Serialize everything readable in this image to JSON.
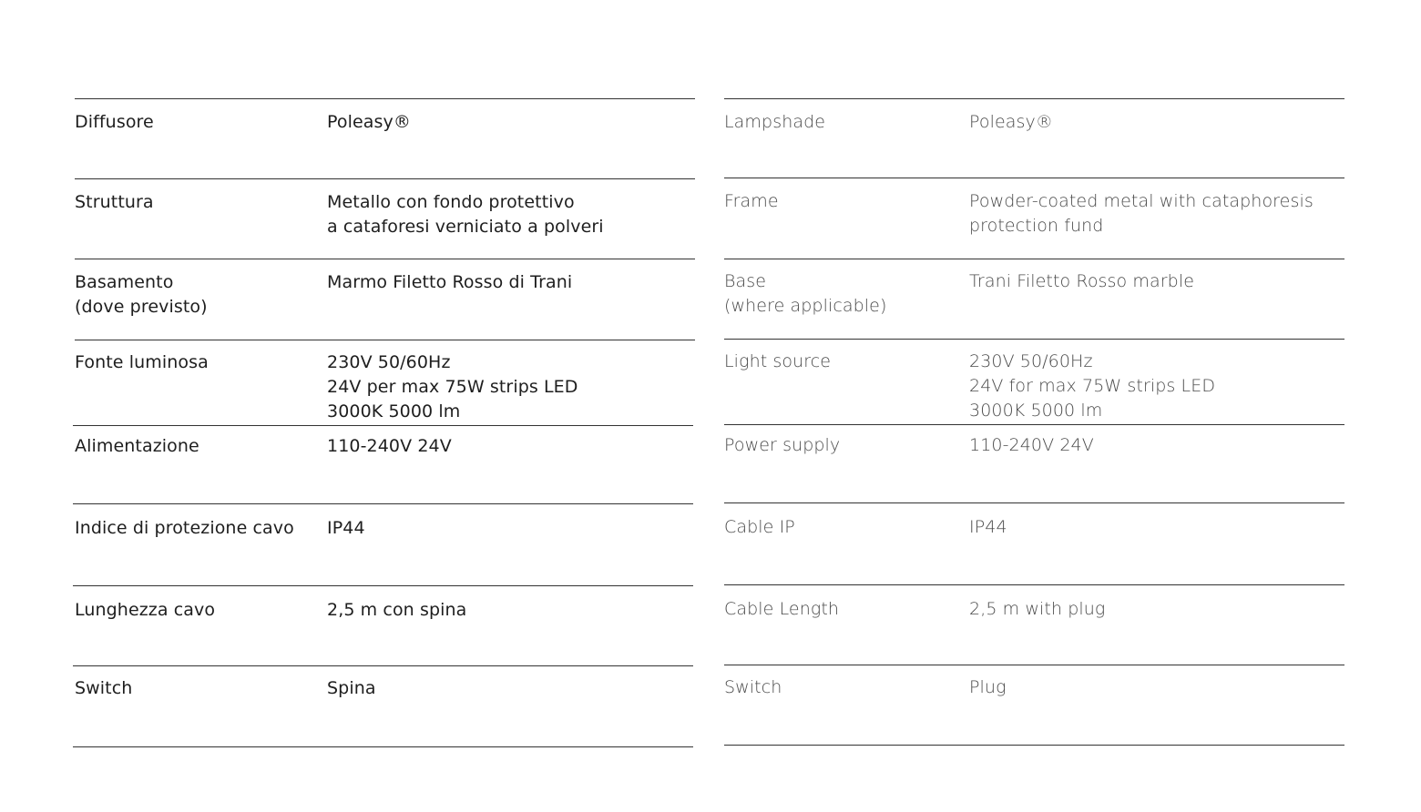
{
  "italian": {
    "rows": [
      {
        "label": "Diffusore",
        "value": "Poleasy®"
      },
      {
        "label": "Struttura",
        "value": "Metallo con fondo protettivo\na cataforesi verniciato a polveri"
      },
      {
        "label": "Basamento\n(dove previsto)",
        "value": "Marmo Filetto Rosso di Trani"
      },
      {
        "label": "Fonte luminosa",
        "value": "230V 50/60Hz\n24V per max 75W strips LED\n3000K 5000 lm"
      },
      {
        "label": "Alimentazione",
        "value": "110-240V 24V"
      },
      {
        "label": "Indice di protezione cavo",
        "value": "IP44"
      },
      {
        "label": "Lunghezza cavo",
        "value": "2,5 m con spina"
      },
      {
        "label": "Switch",
        "value": "Spina"
      }
    ]
  },
  "english": {
    "rows": [
      {
        "label": "Lampshade",
        "value": "Poleasy®"
      },
      {
        "label": "Frame",
        "value": "Powder-coated metal with cataphoresis\nprotection fund"
      },
      {
        "label": "Base\n(where applicable)",
        "value": "Trani Filetto Rosso marble"
      },
      {
        "label": "Light source",
        "value": "230V 50/60Hz\n24V for max 75W strips LED\n3000K 5000 lm"
      },
      {
        "label": "Power supply",
        "value": "110-240V 24V"
      },
      {
        "label": "Cable IP",
        "value": "IP44"
      },
      {
        "label": "Cable Length",
        "value": "2,5 m with plug"
      },
      {
        "label": "Switch",
        "value": "Plug"
      }
    ]
  }
}
